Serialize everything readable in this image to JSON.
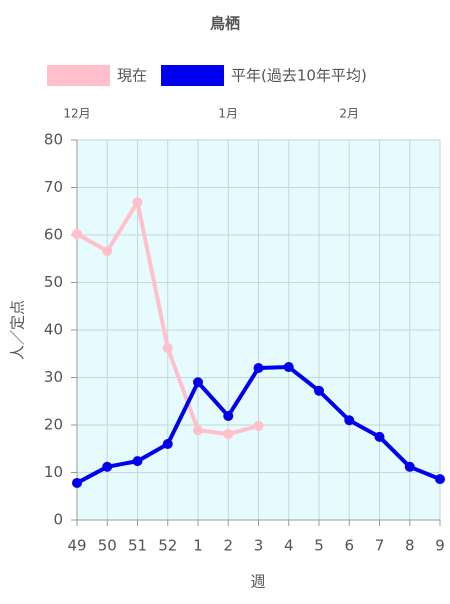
{
  "chart_data": {
    "type": "line",
    "title": "鳥栖",
    "categories": [
      "49",
      "50",
      "51",
      "52",
      "1",
      "2",
      "3",
      "4",
      "5",
      "6",
      "7",
      "8",
      "9"
    ],
    "top_labels": [
      "12月",
      null,
      null,
      null,
      null,
      "1月",
      null,
      null,
      null,
      "2月",
      null,
      null,
      null
    ],
    "series": [
      {
        "name": "現在",
        "color": "#ffc0cb",
        "values": [
          60.2,
          56.6,
          66.9,
          36.2,
          18.9,
          18.1,
          19.8,
          null,
          null,
          null,
          null,
          null,
          null
        ]
      },
      {
        "name": "平年(過去10年平均)",
        "color": "#0000ee",
        "values": [
          7.8,
          11.2,
          12.4,
          16,
          29,
          21.9,
          32,
          32.2,
          27.2,
          21,
          17.5,
          11.2,
          8.6
        ]
      }
    ],
    "ylim": [
      0,
      80
    ],
    "yticks": [
      0,
      10,
      20,
      30,
      40,
      50,
      60,
      70,
      80
    ],
    "y_label": "人／定点",
    "x_label": "週",
    "grid": true,
    "plot_background": "#e6fbfd"
  }
}
